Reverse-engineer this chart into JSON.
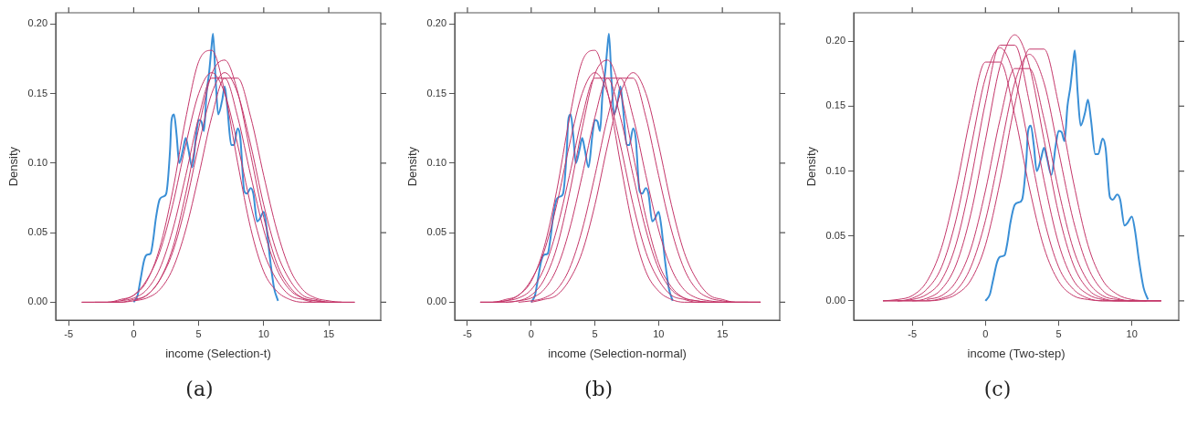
{
  "chart_data": [
    {
      "type": "line",
      "xlabel": "income (Selection-t)",
      "ylabel": "Density",
      "annotations": [
        "(a)"
      ],
      "xlim": [
        -6,
        19
      ],
      "ylim": [
        -0.013,
        0.208
      ],
      "xticks": [
        -5,
        0,
        5,
        10,
        15
      ],
      "yticks": [
        {
          "value": 0,
          "label": "0.00"
        },
        {
          "value": 0.05,
          "label": "0.05"
        },
        {
          "value": 0.1,
          "label": "0.10"
        },
        {
          "value": 0.15,
          "label": "0.15"
        },
        {
          "value": 0.2,
          "label": "0.20"
        }
      ],
      "x": [
        -4,
        -3,
        -2,
        -1,
        0,
        1,
        2,
        3,
        4,
        5,
        6,
        7,
        8,
        9,
        10,
        11,
        12,
        13,
        14,
        15,
        16,
        17
      ],
      "series": [
        {
          "color": "#c4376a",
          "values": [
            0,
            0,
            0,
            0.001,
            0.003,
            0.009,
            0.024,
            0.052,
            0.091,
            0.133,
            0.161,
            0.161,
            0.133,
            0.091,
            0.052,
            0.024,
            0.009,
            0.003,
            0.001,
            0,
            0,
            null
          ]
        },
        {
          "color": "#c4376a",
          "values": [
            null,
            0,
            0,
            0,
            0.002,
            0.005,
            0.016,
            0.036,
            0.07,
            0.113,
            0.15,
            0.165,
            0.15,
            0.113,
            0.07,
            0.036,
            0.016,
            0.005,
            0.002,
            0,
            0,
            0
          ]
        },
        {
          "color": "#c4376a",
          "values": [
            null,
            null,
            0,
            0,
            0.001,
            0.003,
            0.009,
            0.024,
            0.052,
            0.091,
            0.133,
            0.161,
            0.161,
            0.133,
            0.091,
            0.052,
            0.024,
            0.009,
            0.003,
            0.001,
            0,
            0
          ]
        },
        {
          "color": "#c4376a",
          "values": [
            0,
            0,
            0,
            0.002,
            0.005,
            0.016,
            0.036,
            0.07,
            0.113,
            0.15,
            0.165,
            0.15,
            0.113,
            0.07,
            0.036,
            0.016,
            0.005,
            0.002,
            0,
            0,
            null,
            null
          ]
        },
        {
          "color": "#c4376a",
          "values": [
            null,
            null,
            null,
            0.001,
            0.005,
            0.015,
            0.039,
            0.08,
            0.132,
            0.173,
            0.181,
            0.151,
            0.1,
            0.053,
            0.022,
            0.008,
            0.002,
            0,
            0,
            null,
            null,
            null
          ]
        },
        {
          "color": "#c4376a",
          "values": [
            null,
            null,
            null,
            null,
            0.001,
            0.005,
            0.016,
            0.039,
            0.078,
            0.125,
            0.164,
            0.174,
            0.151,
            0.106,
            0.061,
            0.028,
            0.011,
            0.003,
            0.001,
            0,
            0,
            null
          ]
        },
        {
          "color": "#3a8fd6",
          "x": [
            0,
            0.3,
            0.5,
            0.8,
            1,
            1.3,
            1.5,
            1.7,
            2,
            2.3,
            2.5,
            2.8,
            2.9,
            3.1,
            3.3,
            3.5,
            3.8,
            4,
            4.2,
            4.5,
            4.8,
            5,
            5.2,
            5.4,
            5.6,
            5.8,
            6,
            6.1,
            6.3,
            6.5,
            6.8,
            7,
            7.2,
            7.5,
            7.7,
            8,
            8.2,
            8.5,
            8.7,
            9,
            9.2,
            9.5,
            9.7,
            10,
            10.2,
            10.5,
            10.8,
            11.1
          ],
          "values": [
            0,
            0.005,
            0.015,
            0.03,
            0.034,
            0.035,
            0.045,
            0.06,
            0.074,
            0.076,
            0.078,
            0.11,
            0.13,
            0.135,
            0.12,
            0.1,
            0.11,
            0.118,
            0.11,
            0.097,
            0.12,
            0.131,
            0.13,
            0.123,
            0.15,
            0.165,
            0.185,
            0.193,
            0.16,
            0.135,
            0.145,
            0.155,
            0.14,
            0.113,
            0.113,
            0.125,
            0.118,
            0.08,
            0.078,
            0.082,
            0.078,
            0.058,
            0.06,
            0.065,
            0.055,
            0.03,
            0.01,
            0.001
          ]
        }
      ]
    },
    {
      "type": "line",
      "xlabel": "income (Selection-normal)",
      "ylabel": "Density",
      "annotations": [
        "(b)"
      ],
      "xlim": [
        -6,
        19.5
      ],
      "ylim": [
        -0.013,
        0.208
      ],
      "xticks": [
        -5,
        0,
        5,
        10,
        15
      ],
      "yticks": [
        {
          "value": 0,
          "label": "0.00"
        },
        {
          "value": 0.05,
          "label": "0.05"
        },
        {
          "value": 0.1,
          "label": "0.10"
        },
        {
          "value": 0.15,
          "label": "0.15"
        },
        {
          "value": 0.2,
          "label": "0.20"
        }
      ],
      "x": [
        -4,
        -3,
        -2,
        -1,
        0,
        1,
        2,
        3,
        4,
        5,
        6,
        7,
        8,
        9,
        10,
        11,
        12,
        13,
        14,
        15,
        16,
        17,
        18
      ],
      "series": [
        {
          "color": "#c4376a",
          "values": [
            0,
            0,
            0.002,
            0.005,
            0.016,
            0.036,
            0.07,
            0.113,
            0.15,
            0.165,
            0.15,
            0.113,
            0.07,
            0.036,
            0.016,
            0.005,
            0.002,
            0,
            0,
            0,
            0,
            0,
            0
          ]
        },
        {
          "color": "#c4376a",
          "values": [
            null,
            0,
            0.001,
            0.005,
            0.015,
            0.039,
            0.08,
            0.132,
            0.173,
            0.181,
            0.151,
            0.1,
            0.053,
            0.022,
            0.008,
            0.002,
            0,
            0,
            0,
            0,
            0,
            0,
            null
          ]
        },
        {
          "color": "#c4376a",
          "values": [
            null,
            null,
            0,
            0.001,
            0.005,
            0.016,
            0.039,
            0.078,
            0.125,
            0.164,
            0.174,
            0.151,
            0.106,
            0.061,
            0.028,
            0.011,
            0.003,
            0.001,
            0,
            0,
            0,
            0,
            0
          ]
        },
        {
          "color": "#c4376a",
          "values": [
            0,
            0,
            0,
            0.001,
            0.003,
            0.009,
            0.024,
            0.052,
            0.091,
            0.133,
            0.161,
            0.161,
            0.133,
            0.091,
            0.052,
            0.024,
            0.009,
            0.003,
            0.001,
            0,
            0,
            null,
            null
          ]
        },
        {
          "color": "#c4376a",
          "values": [
            null,
            null,
            null,
            0,
            0.001,
            0.003,
            0.009,
            0.024,
            0.052,
            0.091,
            0.133,
            0.161,
            0.161,
            0.133,
            0.091,
            0.052,
            0.024,
            0.009,
            0.003,
            0.001,
            0,
            0,
            0
          ]
        },
        {
          "color": "#c4376a",
          "values": [
            null,
            null,
            null,
            null,
            0,
            0.002,
            0.005,
            0.016,
            0.036,
            0.07,
            0.113,
            0.15,
            0.165,
            0.15,
            0.113,
            0.07,
            0.036,
            0.016,
            0.005,
            0.002,
            0,
            0,
            0
          ]
        },
        {
          "color": "#c4376a",
          "values": [
            0,
            0,
            0.001,
            0.003,
            0.009,
            0.024,
            0.052,
            0.091,
            0.133,
            0.161,
            0.161,
            0.133,
            0.091,
            0.052,
            0.024,
            0.009,
            0.003,
            0.001,
            0,
            0,
            null,
            null,
            null
          ]
        },
        {
          "color": "#3a8fd6",
          "x": [
            0,
            0.3,
            0.5,
            0.8,
            1,
            1.3,
            1.5,
            1.7,
            2,
            2.3,
            2.5,
            2.8,
            2.9,
            3.1,
            3.3,
            3.5,
            3.8,
            4,
            4.2,
            4.5,
            4.8,
            5,
            5.2,
            5.4,
            5.6,
            5.8,
            6,
            6.1,
            6.3,
            6.5,
            6.8,
            7,
            7.2,
            7.5,
            7.7,
            8,
            8.2,
            8.5,
            8.7,
            9,
            9.2,
            9.5,
            9.7,
            10,
            10.2,
            10.5,
            10.8,
            11.1
          ],
          "values": [
            0,
            0.005,
            0.015,
            0.03,
            0.034,
            0.035,
            0.045,
            0.06,
            0.074,
            0.076,
            0.078,
            0.11,
            0.13,
            0.135,
            0.12,
            0.1,
            0.11,
            0.118,
            0.11,
            0.097,
            0.12,
            0.131,
            0.13,
            0.123,
            0.15,
            0.165,
            0.185,
            0.193,
            0.16,
            0.135,
            0.145,
            0.155,
            0.14,
            0.113,
            0.113,
            0.125,
            0.118,
            0.08,
            0.078,
            0.082,
            0.078,
            0.058,
            0.06,
            0.065,
            0.055,
            0.03,
            0.01,
            0.001
          ]
        }
      ]
    },
    {
      "type": "line",
      "xlabel": "income (Two-step)",
      "ylabel": "Density",
      "annotations": [
        "(c)"
      ],
      "xlim": [
        -9,
        13.2
      ],
      "ylim": [
        -0.015,
        0.222
      ],
      "xticks": [
        -5,
        0,
        5,
        10
      ],
      "yticks": [
        {
          "value": 0,
          "label": "0.00"
        },
        {
          "value": 0.05,
          "label": "0.05"
        },
        {
          "value": 0.1,
          "label": "0.10"
        },
        {
          "value": 0.15,
          "label": "0.15"
        },
        {
          "value": 0.2,
          "label": "0.20"
        }
      ],
      "x": [
        -7,
        -6,
        -5,
        -4,
        -3,
        -2,
        -1,
        0,
        1,
        2,
        3,
        4,
        5,
        6,
        7,
        8,
        9,
        10,
        11,
        12
      ],
      "series": [
        {
          "color": "#c4376a",
          "values": [
            0,
            0,
            0.002,
            0.009,
            0.026,
            0.063,
            0.118,
            0.172,
            0.195,
            0.172,
            0.118,
            0.063,
            0.026,
            0.009,
            0.002,
            0,
            0,
            0,
            0,
            0
          ]
        },
        {
          "color": "#c4376a",
          "values": [
            null,
            0,
            0.001,
            0.005,
            0.016,
            0.044,
            0.093,
            0.153,
            0.197,
            0.197,
            0.153,
            0.093,
            0.044,
            0.016,
            0.005,
            0.001,
            0,
            0,
            0,
            0
          ]
        },
        {
          "color": "#c4376a",
          "values": [
            0,
            0,
            0,
            0.002,
            0.009,
            0.028,
            0.067,
            0.124,
            0.181,
            0.205,
            0.181,
            0.124,
            0.067,
            0.028,
            0.009,
            0.002,
            0,
            0,
            0,
            null
          ]
        },
        {
          "color": "#c4376a",
          "values": [
            null,
            null,
            0,
            0,
            0.002,
            0.008,
            0.026,
            0.062,
            0.115,
            0.168,
            0.19,
            0.168,
            0.115,
            0.062,
            0.026,
            0.008,
            0.002,
            0,
            0,
            0
          ]
        },
        {
          "color": "#c4376a",
          "values": [
            null,
            0,
            0,
            0,
            0.001,
            0.005,
            0.016,
            0.043,
            0.092,
            0.151,
            0.194,
            0.194,
            0.151,
            0.092,
            0.043,
            0.016,
            0.005,
            0.001,
            0,
            null
          ]
        },
        {
          "color": "#c4376a",
          "values": [
            0,
            0.001,
            0.004,
            0.015,
            0.041,
            0.087,
            0.143,
            0.184,
            0.184,
            0.143,
            0.087,
            0.041,
            0.015,
            0.004,
            0.001,
            0,
            0,
            0,
            null,
            null
          ]
        },
        {
          "color": "#c4376a",
          "values": [
            null,
            null,
            null,
            0.001,
            0.004,
            0.015,
            0.04,
            0.085,
            0.14,
            0.179,
            0.179,
            0.14,
            0.085,
            0.04,
            0.015,
            0.004,
            0.001,
            0,
            0,
            0
          ]
        },
        {
          "color": "#3a8fd6",
          "x": [
            0,
            0.3,
            0.5,
            0.8,
            1,
            1.3,
            1.5,
            1.7,
            2,
            2.3,
            2.5,
            2.8,
            2.9,
            3.1,
            3.3,
            3.5,
            3.8,
            4,
            4.2,
            4.5,
            4.8,
            5,
            5.2,
            5.4,
            5.6,
            5.8,
            6,
            6.1,
            6.3,
            6.5,
            6.8,
            7,
            7.2,
            7.5,
            7.7,
            8,
            8.2,
            8.5,
            8.7,
            9,
            9.2,
            9.5,
            9.7,
            10,
            10.2,
            10.5,
            10.8,
            11.1
          ],
          "values": [
            0,
            0.005,
            0.015,
            0.03,
            0.034,
            0.035,
            0.045,
            0.06,
            0.074,
            0.076,
            0.078,
            0.11,
            0.13,
            0.135,
            0.12,
            0.1,
            0.11,
            0.118,
            0.11,
            0.097,
            0.12,
            0.131,
            0.13,
            0.123,
            0.15,
            0.165,
            0.185,
            0.193,
            0.16,
            0.135,
            0.145,
            0.155,
            0.14,
            0.113,
            0.113,
            0.125,
            0.118,
            0.08,
            0.078,
            0.082,
            0.078,
            0.058,
            0.06,
            0.065,
            0.055,
            0.03,
            0.01,
            0.001
          ]
        }
      ]
    }
  ]
}
